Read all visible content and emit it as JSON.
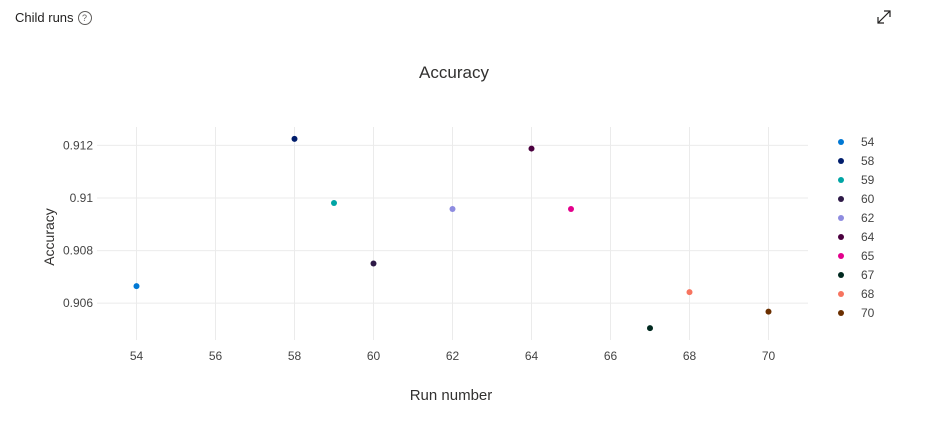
{
  "panel": {
    "title": "Child runs",
    "help_icon": "question-circle-icon",
    "expand_icon": "expand-diagonal-icon"
  },
  "chart_data": {
    "type": "scatter",
    "title": "Accuracy",
    "xlabel": "Run number",
    "ylabel": "Accuracy",
    "xlim": [
      53,
      71
    ],
    "ylim": [
      0.9046,
      0.9127
    ],
    "x_ticks": [
      54,
      56,
      58,
      60,
      62,
      64,
      66,
      68,
      70
    ],
    "y_ticks": [
      0.906,
      0.908,
      0.91,
      0.912
    ],
    "y_tick_labels": [
      "0.906",
      "0.908",
      "0.91",
      "0.912"
    ],
    "grid": true,
    "legend_position": "right",
    "series": [
      {
        "name": "54",
        "color": "#0078d4",
        "x": 54,
        "y": 0.90665
      },
      {
        "name": "58",
        "color": "#001d6c",
        "x": 58,
        "y": 0.91225
      },
      {
        "name": "59",
        "color": "#00a5a5",
        "x": 59,
        "y": 0.90981
      },
      {
        "name": "60",
        "color": "#2e1a47",
        "x": 60,
        "y": 0.90751
      },
      {
        "name": "62",
        "color": "#8e8ce0",
        "x": 62,
        "y": 0.90958
      },
      {
        "name": "64",
        "color": "#4b003f",
        "x": 64,
        "y": 0.91188
      },
      {
        "name": "65",
        "color": "#e3008c",
        "x": 65,
        "y": 0.90958
      },
      {
        "name": "67",
        "color": "#00291f",
        "x": 67,
        "y": 0.90505
      },
      {
        "name": "68",
        "color": "#f7745f",
        "x": 68,
        "y": 0.90642
      },
      {
        "name": "70",
        "color": "#6b2f00",
        "x": 70,
        "y": 0.90568
      }
    ]
  }
}
